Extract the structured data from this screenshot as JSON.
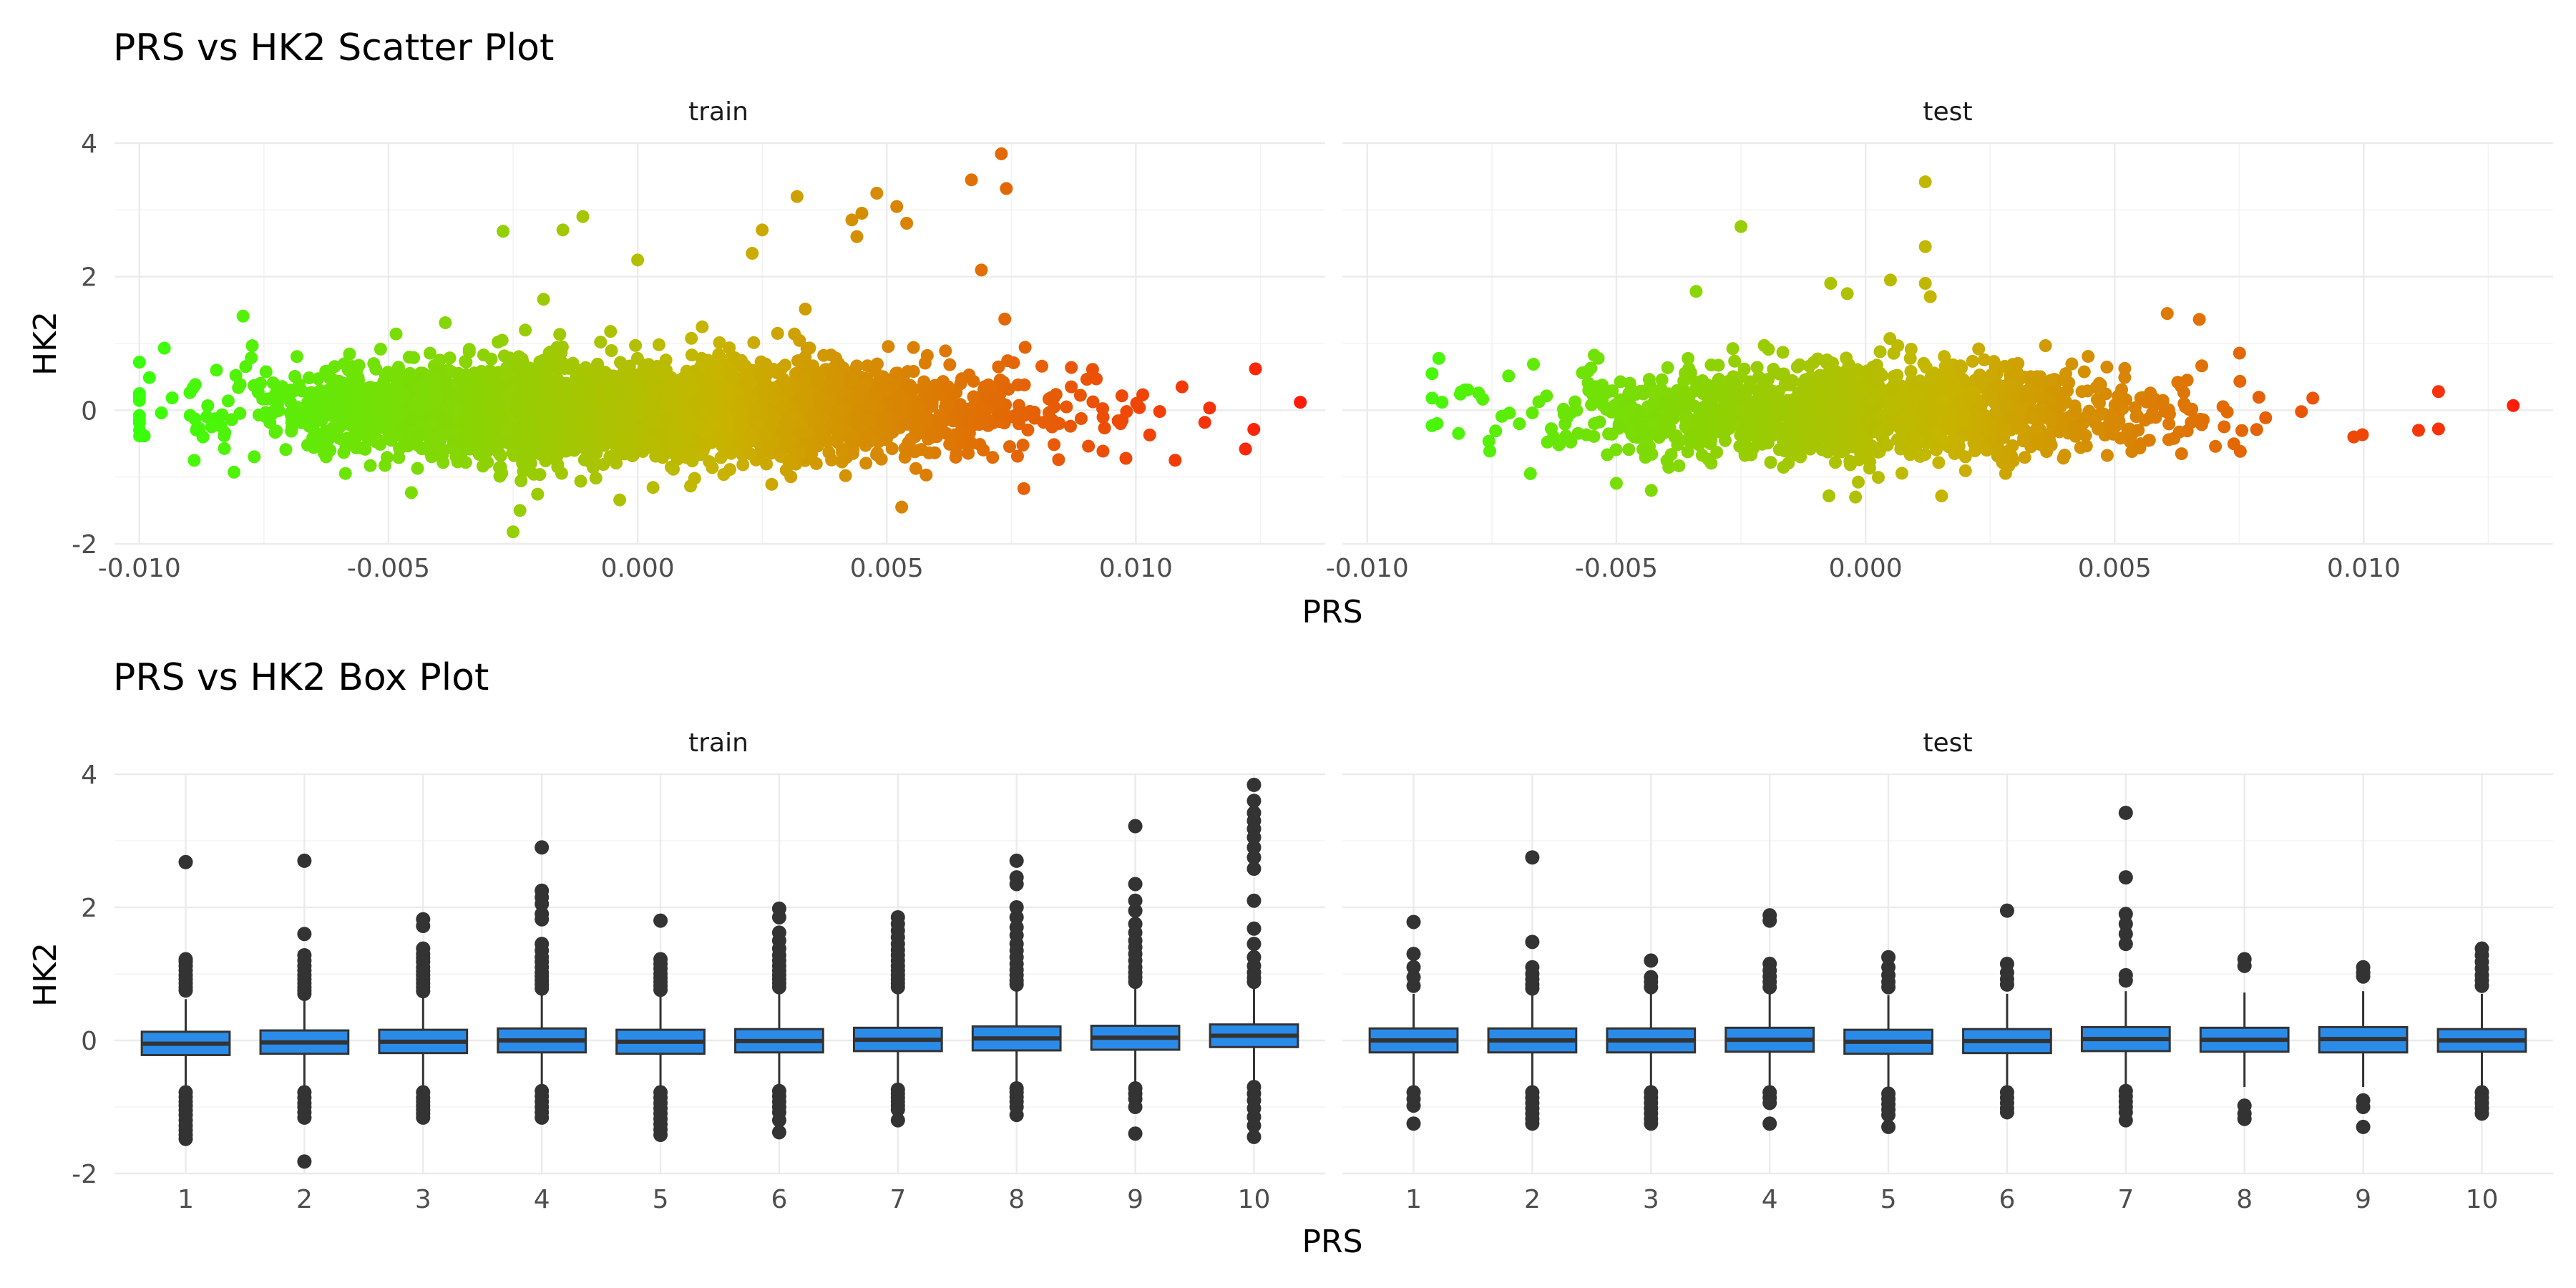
{
  "chart_data": [
    {
      "type": "scatter",
      "title": "PRS vs HK2 Scatter Plot",
      "xlabel": "PRS",
      "ylabel": "HK2",
      "xlim": [
        -0.0105,
        0.0138
      ],
      "ylim": [
        -2,
        4
      ],
      "x_ticks": [
        "-0.010",
        "-0.005",
        "0.000",
        "0.005",
        "0.010"
      ],
      "y_ticks": [
        "-2",
        "0",
        "2",
        "4"
      ],
      "color_scale": {
        "low": "#38ff0a",
        "mid": "#c8b400",
        "high": "#ff1a0a",
        "by": "PRS"
      },
      "grid": true,
      "legend": "none",
      "panels": [
        {
          "name": "train",
          "x_range": [
            -0.01,
            0.0133
          ],
          "n_points": 4000,
          "x_sd": 0.0034,
          "y_sd": 0.33,
          "notable_points": [
            {
              "x": -0.01,
              "y": 0.72
            },
            {
              "x": -0.0095,
              "y": 0.93
            },
            {
              "x": -0.01,
              "y": -0.08
            },
            {
              "x": -0.01,
              "y": -0.15
            },
            {
              "x": -0.0089,
              "y": -0.75
            },
            {
              "x": -0.0025,
              "y": -1.82
            },
            {
              "x": -0.0027,
              "y": 2.68
            },
            {
              "x": -0.0015,
              "y": 2.7
            },
            {
              "x": -0.0011,
              "y": 2.9
            },
            {
              "x": 0.0,
              "y": 2.25
            },
            {
              "x": 0.0023,
              "y": 2.35
            },
            {
              "x": 0.0025,
              "y": 2.7
            },
            {
              "x": 0.0032,
              "y": 3.2
            },
            {
              "x": 0.0043,
              "y": 2.85
            },
            {
              "x": 0.0044,
              "y": 2.6
            },
            {
              "x": 0.0045,
              "y": 2.95
            },
            {
              "x": 0.0048,
              "y": 3.25
            },
            {
              "x": 0.0052,
              "y": 3.05
            },
            {
              "x": 0.0054,
              "y": 2.8
            },
            {
              "x": 0.0067,
              "y": 3.45
            },
            {
              "x": 0.0073,
              "y": 3.84
            },
            {
              "x": 0.0074,
              "y": 3.32
            },
            {
              "x": 0.0069,
              "y": 2.1
            },
            {
              "x": 0.0053,
              "y": -1.45
            },
            {
              "x": 0.0124,
              "y": 0.62
            },
            {
              "x": 0.0133,
              "y": 0.12
            },
            {
              "x": 0.0122,
              "y": -0.58
            },
            {
              "x": 0.0098,
              "y": -0.72
            }
          ]
        },
        {
          "name": "test",
          "x_range": [
            -0.0087,
            0.013
          ],
          "n_points": 1500,
          "x_sd": 0.0031,
          "y_sd": 0.33,
          "notable_points": [
            {
              "x": -0.0086,
              "y": -0.2
            },
            {
              "x": -0.0085,
              "y": 0.12
            },
            {
              "x": -0.0025,
              "y": 2.75
            },
            {
              "x": 0.0012,
              "y": 3.42
            },
            {
              "x": 0.0012,
              "y": 2.45
            },
            {
              "x": 0.0012,
              "y": 1.9
            },
            {
              "x": 0.0013,
              "y": 1.7
            },
            {
              "x": -0.0007,
              "y": 1.9
            },
            {
              "x": 0.0005,
              "y": 1.95
            },
            {
              "x": -0.0034,
              "y": 1.78
            },
            {
              "x": 0.0067,
              "y": 1.36
            },
            {
              "x": 0.0098,
              "y": -0.4
            },
            {
              "x": 0.0111,
              "y": -0.3
            },
            {
              "x": 0.0115,
              "y": 0.28
            },
            {
              "x": 0.0115,
              "y": -0.28
            },
            {
              "x": 0.013,
              "y": 0.07
            },
            {
              "x": -0.0043,
              "y": -1.2
            },
            {
              "x": -0.0002,
              "y": -1.3
            }
          ]
        }
      ]
    },
    {
      "type": "box",
      "title": "PRS vs HK2 Box Plot",
      "xlabel": "PRS",
      "ylabel": "HK2",
      "ylim": [
        -2,
        4
      ],
      "categories": [
        "1",
        "2",
        "3",
        "4",
        "5",
        "6",
        "7",
        "8",
        "9",
        "10"
      ],
      "y_ticks": [
        "-2",
        "0",
        "2",
        "4"
      ],
      "box_color": "#2b8be8",
      "grid": true,
      "panels": [
        {
          "name": "train",
          "boxes": [
            {
              "q1": -0.22,
              "median": -0.05,
              "q3": 0.13,
              "whisk_lo": -0.72,
              "whisk_hi": 0.62,
              "outliers": [
                2.68,
                1.22,
                1.18,
                1.12,
                1.05,
                0.98,
                0.92,
                0.86,
                0.8,
                0.75,
                -0.78,
                -0.85,
                -0.92,
                -0.98,
                -1.05,
                -1.12,
                -1.2,
                -1.28,
                -1.35,
                -1.42,
                -1.48
              ]
            },
            {
              "q1": -0.2,
              "median": -0.03,
              "q3": 0.15,
              "whisk_lo": -0.72,
              "whisk_hi": 0.66,
              "outliers": [
                2.7,
                1.6,
                1.28,
                1.2,
                1.12,
                1.05,
                0.98,
                0.92,
                0.86,
                0.8,
                0.75,
                0.7,
                -0.78,
                -0.86,
                -0.94,
                -1.0,
                -1.08,
                -1.16,
                -1.82
              ]
            },
            {
              "q1": -0.19,
              "median": -0.02,
              "q3": 0.16,
              "whisk_lo": -0.72,
              "whisk_hi": 0.68,
              "outliers": [
                1.82,
                1.72,
                1.38,
                1.3,
                1.24,
                1.18,
                1.1,
                1.04,
                0.98,
                0.92,
                0.86,
                0.8,
                0.74,
                -0.78,
                -0.86,
                -0.92,
                -0.98,
                -1.04,
                -1.1,
                -1.16
              ]
            },
            {
              "q1": -0.18,
              "median": 0.0,
              "q3": 0.18,
              "whisk_lo": -0.7,
              "whisk_hi": 0.72,
              "outliers": [
                2.9,
                2.25,
                2.15,
                2.05,
                1.9,
                1.82,
                1.45,
                1.35,
                1.25,
                1.18,
                1.1,
                1.02,
                0.96,
                0.9,
                0.84,
                0.78,
                -0.76,
                -0.84,
                -0.92,
                -1.0,
                -1.08,
                -1.16
              ]
            },
            {
              "q1": -0.2,
              "median": -0.02,
              "q3": 0.16,
              "whisk_lo": -0.72,
              "whisk_hi": 0.7,
              "outliers": [
                1.8,
                1.22,
                1.15,
                1.08,
                1.0,
                0.94,
                0.88,
                0.82,
                0.76,
                -0.78,
                -0.86,
                -0.94,
                -1.02,
                -1.1,
                -1.18,
                -1.26,
                -1.34,
                -1.42
              ]
            },
            {
              "q1": -0.18,
              "median": -0.01,
              "q3": 0.17,
              "whisk_lo": -0.7,
              "whisk_hi": 0.72,
              "outliers": [
                1.98,
                1.85,
                1.62,
                1.5,
                1.38,
                1.28,
                1.2,
                1.12,
                1.05,
                0.98,
                0.92,
                0.86,
                0.8,
                -0.76,
                -0.84,
                -0.92,
                -1.0,
                -1.08,
                -1.2,
                -1.38
              ]
            },
            {
              "q1": -0.16,
              "median": 0.01,
              "q3": 0.19,
              "whisk_lo": -0.68,
              "whisk_hi": 0.74,
              "outliers": [
                1.85,
                1.75,
                1.65,
                1.55,
                1.45,
                1.36,
                1.28,
                1.2,
                1.12,
                1.05,
                0.98,
                0.92,
                0.86,
                0.8,
                -0.74,
                -0.8,
                -0.86,
                -0.92,
                -0.98,
                -1.04,
                -1.2
              ]
            },
            {
              "q1": -0.15,
              "median": 0.03,
              "q3": 0.21,
              "whisk_lo": -0.66,
              "whisk_hi": 0.78,
              "outliers": [
                2.7,
                2.45,
                2.35,
                2.0,
                1.85,
                1.7,
                1.58,
                1.45,
                1.35,
                1.25,
                1.15,
                1.06,
                0.98,
                0.9,
                0.84,
                -0.72,
                -0.78,
                -0.85,
                -0.92,
                -1.0,
                -1.12
              ]
            },
            {
              "q1": -0.14,
              "median": 0.04,
              "q3": 0.22,
              "whisk_lo": -0.66,
              "whisk_hi": 0.8,
              "outliers": [
                3.22,
                2.35,
                2.1,
                1.95,
                1.75,
                1.62,
                1.5,
                1.4,
                1.3,
                1.2,
                1.1,
                1.02,
                0.95,
                0.88,
                -0.72,
                -0.8,
                -0.88,
                -1.0,
                -1.4
              ]
            },
            {
              "q1": -0.1,
              "median": 0.07,
              "q3": 0.24,
              "whisk_lo": -0.62,
              "whisk_hi": 0.82,
              "outliers": [
                3.84,
                3.6,
                3.42,
                3.3,
                3.18,
                3.05,
                2.9,
                2.75,
                2.58,
                2.1,
                1.68,
                1.45,
                1.25,
                1.12,
                1.02,
                0.94,
                0.88,
                -0.7,
                -0.8,
                -0.9,
                -1.02,
                -1.15,
                -1.28,
                -1.45
              ]
            }
          ]
        },
        {
          "name": "test",
          "boxes": [
            {
              "q1": -0.18,
              "median": 0.0,
              "q3": 0.18,
              "whisk_lo": -0.7,
              "whisk_hi": 0.7,
              "outliers": [
                1.78,
                1.3,
                1.1,
                0.95,
                0.82,
                -0.78,
                -0.88,
                -0.98,
                -1.25
              ]
            },
            {
              "q1": -0.18,
              "median": 0.0,
              "q3": 0.18,
              "whisk_lo": -0.7,
              "whisk_hi": 0.7,
              "outliers": [
                2.75,
                1.48,
                1.1,
                1.0,
                0.92,
                0.84,
                0.78,
                -0.78,
                -0.86,
                -0.94,
                -1.02,
                -1.1,
                -1.18,
                -1.25
              ]
            },
            {
              "q1": -0.18,
              "median": 0.0,
              "q3": 0.18,
              "whisk_lo": -0.7,
              "whisk_hi": 0.7,
              "outliers": [
                1.2,
                0.95,
                0.88,
                0.8,
                -0.78,
                -0.86,
                -0.94,
                -1.02,
                -1.1,
                -1.18,
                -1.25
              ]
            },
            {
              "q1": -0.17,
              "median": 0.01,
              "q3": 0.19,
              "whisk_lo": -0.7,
              "whisk_hi": 0.72,
              "outliers": [
                1.88,
                1.8,
                1.15,
                1.05,
                0.96,
                0.88,
                0.8,
                -0.78,
                -0.86,
                -0.94,
                -1.25
              ]
            },
            {
              "q1": -0.2,
              "median": -0.02,
              "q3": 0.16,
              "whisk_lo": -0.72,
              "whisk_hi": 0.68,
              "outliers": [
                1.25,
                1.1,
                0.98,
                0.88,
                0.8,
                -0.8,
                -0.88,
                -0.96,
                -1.04,
                -1.12,
                -1.3
              ]
            },
            {
              "q1": -0.19,
              "median": -0.01,
              "q3": 0.17,
              "whisk_lo": -0.72,
              "whisk_hi": 0.7,
              "outliers": [
                1.95,
                1.15,
                1.02,
                0.92,
                0.84,
                -0.78,
                -0.86,
                -0.94,
                -1.02,
                -1.08
              ]
            },
            {
              "q1": -0.16,
              "median": 0.02,
              "q3": 0.2,
              "whisk_lo": -0.68,
              "whisk_hi": 0.74,
              "outliers": [
                3.42,
                2.45,
                1.9,
                1.75,
                1.6,
                1.45,
                0.98,
                0.9,
                -0.76,
                -0.84,
                -0.92,
                -1.0,
                -1.08,
                -1.2
              ]
            },
            {
              "q1": -0.17,
              "median": 0.01,
              "q3": 0.19,
              "whisk_lo": -0.7,
              "whisk_hi": 0.72,
              "outliers": [
                1.22,
                1.12,
                -0.98,
                -1.1,
                -1.18
              ]
            },
            {
              "q1": -0.18,
              "median": 0.02,
              "q3": 0.2,
              "whisk_lo": -0.7,
              "whisk_hi": 0.74,
              "outliers": [
                1.1,
                1.02,
                0.96,
                -0.9,
                -1.0,
                -1.3
              ]
            },
            {
              "q1": -0.17,
              "median": 0.0,
              "q3": 0.17,
              "whisk_lo": -0.7,
              "whisk_hi": 0.7,
              "outliers": [
                1.38,
                1.28,
                1.18,
                1.08,
                0.98,
                0.9,
                0.82,
                -0.78,
                -0.86,
                -0.94,
                -1.02,
                -1.1
              ]
            }
          ]
        }
      ]
    }
  ]
}
